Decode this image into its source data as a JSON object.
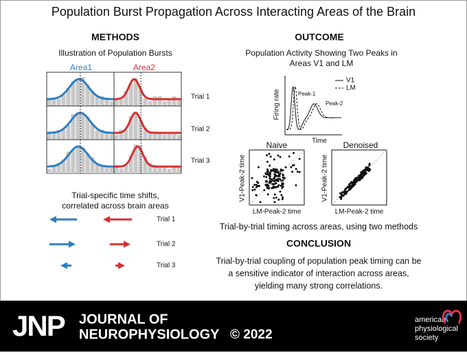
{
  "title": "Population Burst Propagation Across Interacting Areas of the Brain",
  "methods": {
    "heading": "METHODS",
    "subtitle": "Illustration of Population Bursts",
    "areas": [
      "Area1",
      "Area2"
    ],
    "trials": [
      "Trial 1",
      "Trial 2",
      "Trial 3"
    ],
    "shifts_text": [
      "Trial-specific time shifts,",
      "correlated across brain areas"
    ],
    "arrow_trials": [
      "Trial 1",
      "Trial 2",
      "Trial 3"
    ]
  },
  "outcome": {
    "heading": "OUTCOME",
    "subtitle": [
      "Population Activity Showing Two Peaks in",
      "Areas V1 and LM"
    ],
    "y_label": "Firing rate",
    "x_label": "Time",
    "legend": [
      "V1",
      "LM"
    ],
    "peaks": [
      "Peak-1",
      "Peak-2"
    ],
    "scatter": [
      {
        "title": "Naive",
        "y_label": "V1-Peak-2 time",
        "x_label": "LM-Peak-2 time"
      },
      {
        "title": "Denoised",
        "y_label": "V1-Peak-2 time",
        "x_label": "LM-Peak-2 time"
      }
    ],
    "caption": "Trial-by-trial timing across areas, using two methods"
  },
  "conclusion": {
    "heading": "CONCLUSION",
    "lines": [
      "Trial-by-trial coupling of population peak timing can be",
      "a sensitive indicator of interaction across areas,",
      "yielding many strong correlations."
    ]
  },
  "footer": {
    "logo": "JNP",
    "journal": [
      "JOURNAL OF",
      "NEUROPHYSIOLOGY"
    ],
    "copyright": "© 2022",
    "society": [
      "american",
      "physiological",
      "society"
    ]
  }
}
